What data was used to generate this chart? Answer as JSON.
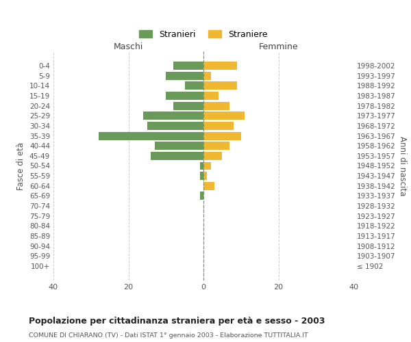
{
  "age_groups": [
    "0-4",
    "5-9",
    "10-14",
    "15-19",
    "20-24",
    "25-29",
    "30-34",
    "35-39",
    "40-44",
    "45-49",
    "50-54",
    "55-59",
    "60-64",
    "65-69",
    "70-74",
    "75-79",
    "80-84",
    "85-89",
    "90-94",
    "95-99",
    "100+"
  ],
  "birth_years": [
    "1998-2002",
    "1993-1997",
    "1988-1992",
    "1983-1987",
    "1978-1982",
    "1973-1977",
    "1968-1972",
    "1963-1967",
    "1958-1962",
    "1953-1957",
    "1948-1952",
    "1943-1947",
    "1938-1942",
    "1933-1937",
    "1928-1932",
    "1923-1927",
    "1918-1922",
    "1913-1917",
    "1908-1912",
    "1903-1907",
    "≤ 1902"
  ],
  "maschi": [
    8,
    10,
    5,
    10,
    8,
    16,
    15,
    28,
    13,
    14,
    1,
    1,
    0,
    1,
    0,
    0,
    0,
    0,
    0,
    0,
    0
  ],
  "femmine": [
    9,
    2,
    9,
    4,
    7,
    11,
    8,
    10,
    7,
    5,
    2,
    1,
    3,
    0,
    0,
    0,
    0,
    0,
    0,
    0,
    0
  ],
  "maschi_color": "#6a9a5a",
  "femmine_color": "#f0b830",
  "grid_color": "#cccccc",
  "title": "Popolazione per cittadinanza straniera per età e sesso - 2003",
  "subtitle": "COMUNE DI CHIARANO (TV) - Dati ISTAT 1° gennaio 2003 - Elaborazione TUTTITALIA.IT",
  "ylabel_left": "Fasce di età",
  "ylabel_right": "Anni di nascita",
  "xlabel_maschi": "Maschi",
  "xlabel_femmine": "Femmine",
  "legend_maschi": "Stranieri",
  "legend_femmine": "Straniere",
  "xlim": 40,
  "bar_height": 0.82
}
